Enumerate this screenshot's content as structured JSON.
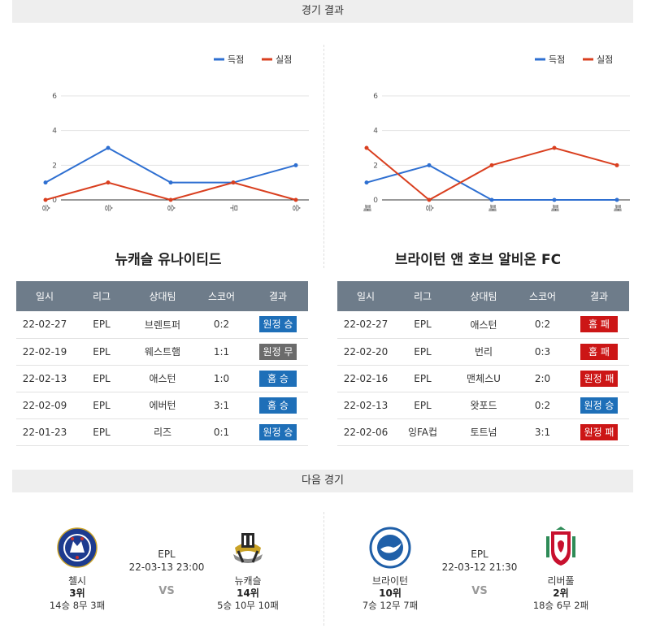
{
  "headers": {
    "results": "경기 결과",
    "next": "다음 경기"
  },
  "colors": {
    "scored": "#2e6fd1",
    "conceded": "#d93f1f",
    "win": "#1e6fb8",
    "draw": "#6b6b6b",
    "loss": "#cc1616",
    "table_head": "#6e7c8a"
  },
  "legend": {
    "scored": "득점",
    "conceded": "실점"
  },
  "chart_data": [
    {
      "type": "line",
      "categories": [
        "승",
        "승",
        "승",
        "무",
        "승"
      ],
      "series": [
        {
          "name": "득점",
          "values": [
            1,
            3,
            1,
            1,
            2
          ]
        },
        {
          "name": "실점",
          "values": [
            0,
            1,
            0,
            1,
            0
          ]
        }
      ],
      "ylim": [
        0,
        6
      ],
      "yticks": [
        0,
        2,
        4,
        6
      ],
      "legend_position": "top-right",
      "grid": true
    },
    {
      "type": "line",
      "categories": [
        "패",
        "승",
        "패",
        "패",
        "패"
      ],
      "series": [
        {
          "name": "득점",
          "values": [
            1,
            2,
            0,
            0,
            0
          ]
        },
        {
          "name": "실점",
          "values": [
            3,
            0,
            2,
            3,
            2
          ]
        }
      ],
      "ylim": [
        0,
        6
      ],
      "yticks": [
        0,
        2,
        4,
        6
      ],
      "legend_position": "top-right",
      "grid": true
    }
  ],
  "teams": {
    "left": {
      "name": "뉴캐슬 유나이티드",
      "rows": [
        {
          "date": "22-02-27",
          "league": "EPL",
          "opponent": "브렌트퍼",
          "score": "0:2",
          "result": "원정 승",
          "kind": "win"
        },
        {
          "date": "22-02-19",
          "league": "EPL",
          "opponent": "웨스트햄",
          "score": "1:1",
          "result": "원정 무",
          "kind": "draw"
        },
        {
          "date": "22-02-13",
          "league": "EPL",
          "opponent": "애스턴",
          "score": "1:0",
          "result": "홈 승",
          "kind": "win"
        },
        {
          "date": "22-02-09",
          "league": "EPL",
          "opponent": "에버턴",
          "score": "3:1",
          "result": "홈 승",
          "kind": "win"
        },
        {
          "date": "22-01-23",
          "league": "EPL",
          "opponent": "리즈",
          "score": "0:1",
          "result": "원정 승",
          "kind": "win"
        }
      ]
    },
    "right": {
      "name": "브라이턴 앤 호브 알비온 FC",
      "rows": [
        {
          "date": "22-02-27",
          "league": "EPL",
          "opponent": "애스턴",
          "score": "0:2",
          "result": "홈 패",
          "kind": "loss"
        },
        {
          "date": "22-02-20",
          "league": "EPL",
          "opponent": "번리",
          "score": "0:3",
          "result": "홈 패",
          "kind": "loss"
        },
        {
          "date": "22-02-16",
          "league": "EPL",
          "opponent": "맨체스U",
          "score": "2:0",
          "result": "원정 패",
          "kind": "loss"
        },
        {
          "date": "22-02-13",
          "league": "EPL",
          "opponent": "왓포드",
          "score": "0:2",
          "result": "원정 승",
          "kind": "win"
        },
        {
          "date": "22-02-06",
          "league": "잉FA컵",
          "opponent": "토트넘",
          "score": "3:1",
          "result": "원정 패",
          "kind": "loss"
        }
      ]
    }
  },
  "table_headers": [
    "일시",
    "리그",
    "상대팀",
    "스코어",
    "결과"
  ],
  "next_matches": [
    {
      "league": "EPL",
      "datetime": "22-03-13 23:00",
      "vs": "VS",
      "home": {
        "name": "첼시",
        "rank": "3위",
        "record": "14승 8무 3패",
        "logo": "chelsea-logo"
      },
      "away": {
        "name": "뉴캐슬",
        "rank": "14위",
        "record": "5승 10무 10패",
        "logo": "newcastle-logo"
      }
    },
    {
      "league": "EPL",
      "datetime": "22-03-12 21:30",
      "vs": "VS",
      "home": {
        "name": "브라이턴",
        "rank": "10위",
        "record": "7승 12무 7패",
        "logo": "brighton-logo"
      },
      "away": {
        "name": "리버풀",
        "rank": "2위",
        "record": "18승 6무 2패",
        "logo": "liverpool-logo"
      }
    }
  ]
}
